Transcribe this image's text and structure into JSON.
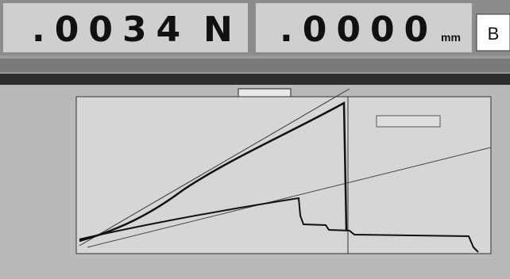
{
  "display": {
    "force": ".0034",
    "force_unit": "N",
    "position": ".0000",
    "position_unit": "mm",
    "mode": "B"
  }
}
